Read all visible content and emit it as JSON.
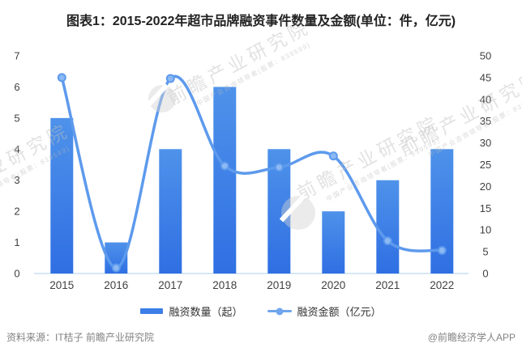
{
  "title": "图表1：2015-2022年超市品牌融资事件数量及金额(单位：件，亿元)",
  "chart_data": {
    "type": "bar+line",
    "title": "图表1：2015-2022年超市品牌融资事件数量及金额(单位：件，亿元)",
    "categories": [
      "2015",
      "2016",
      "2017",
      "2018",
      "2019",
      "2020",
      "2021",
      "2022"
    ],
    "series": [
      {
        "name": "融资数量（起）",
        "type": "bar",
        "axis": "left",
        "values": [
          5,
          1,
          4,
          6,
          4,
          2,
          3,
          4
        ]
      },
      {
        "name": "融资金额（亿元）",
        "type": "line",
        "axis": "right",
        "values": [
          45.0,
          1.3,
          44.8,
          24.7,
          24.4,
          27.0,
          7.5,
          5.3
        ]
      }
    ],
    "left_axis": {
      "min": 0,
      "max": 7,
      "ticks": [
        0,
        1,
        2,
        3,
        4,
        5,
        6,
        7
      ]
    },
    "right_axis": {
      "min": 0,
      "max": 50,
      "ticks": [
        0,
        5,
        10,
        15,
        20,
        25,
        30,
        35,
        40,
        45,
        50
      ]
    },
    "grid": false,
    "legend_position": "bottom"
  },
  "legend": {
    "bar_label": "融资数量（起）",
    "line_label": "融资金额（亿元）"
  },
  "footer": {
    "source": "资料来源：IT桔子 前瞻产业研究院",
    "credit": "@前瞻经济学人APP"
  },
  "colors": {
    "bar_top": "#4e92ea",
    "bar_bottom": "#2f6fe3",
    "line": "#5d9aed",
    "marker_fill": "#8cb9f3",
    "baseline": "#d6e7f8",
    "axis_text": "#404040"
  },
  "watermark": {
    "text": "前瞻产业研究院",
    "subtext": "中国产业咨询领导者(股票：839599)"
  }
}
